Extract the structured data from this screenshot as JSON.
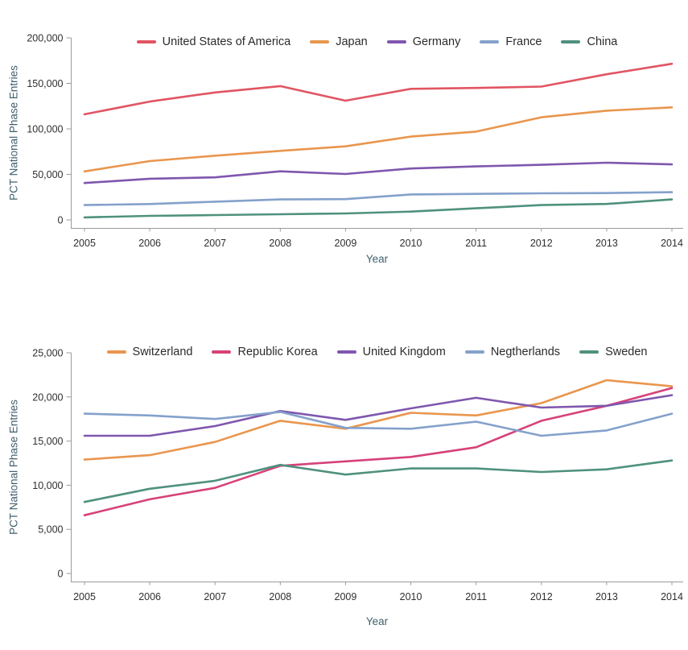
{
  "chart_data": [
    {
      "type": "line",
      "title": "",
      "xlabel": "Year",
      "ylabel": "PCT National Phase Entries",
      "x": [
        2005,
        2006,
        2007,
        2008,
        2009,
        2010,
        2011,
        2012,
        2013,
        2014
      ],
      "x_tick_labels": [
        "2005",
        "2006",
        "2007",
        "2008",
        "2009",
        "2010",
        "2011",
        "2012",
        "2013",
        "2014"
      ],
      "ylim": [
        0,
        200000
      ],
      "yticks": [
        0,
        50000,
        100000,
        150000,
        200000
      ],
      "y_tick_labels": [
        "0",
        "50,000",
        "100,000",
        "150,000",
        "200,000"
      ],
      "grid": false,
      "legend_position": "top-center",
      "series": [
        {
          "name": "United States of America",
          "color": "#e15563",
          "values": [
            116000,
            130000,
            140000,
            147000,
            131000,
            144000,
            145000,
            146500,
            160000,
            171500
          ]
        },
        {
          "name": "Japan",
          "color": "#e9964e",
          "values": [
            53300,
            64600,
            70500,
            75800,
            80800,
            91500,
            97000,
            112700,
            120000,
            123600
          ]
        },
        {
          "name": "Germany",
          "color": "#7f57ae",
          "values": [
            40500,
            45200,
            46700,
            53400,
            50400,
            56500,
            58800,
            60500,
            62800,
            61000
          ]
        },
        {
          "name": "France",
          "color": "#84a1cb",
          "values": [
            16300,
            17400,
            20000,
            22500,
            22800,
            28000,
            28600,
            29200,
            29500,
            30400
          ]
        },
        {
          "name": "China",
          "color": "#4f917e",
          "values": [
            2700,
            4400,
            5300,
            6200,
            7100,
            9100,
            12700,
            16300,
            17500,
            22500
          ]
        }
      ]
    },
    {
      "type": "line",
      "title": "",
      "xlabel": "Year",
      "ylabel": "PCT National Phase Entries",
      "x": [
        2005,
        2006,
        2007,
        2008,
        2009,
        2010,
        2011,
        2012,
        2013,
        2014
      ],
      "x_tick_labels": [
        "2005",
        "2006",
        "2007",
        "2008",
        "2009",
        "2010",
        "2011",
        "2012",
        "2013",
        "2014"
      ],
      "ylim": [
        0,
        25000
      ],
      "yticks": [
        0,
        5000,
        10000,
        15000,
        20000,
        25000
      ],
      "y_tick_labels": [
        "0",
        "5,000",
        "10,000",
        "15,000",
        "20,000",
        "25,000"
      ],
      "grid": false,
      "legend_position": "top-center",
      "series": [
        {
          "name": "Switzerland",
          "color": "#e9964e",
          "values": [
            12900,
            13400,
            14900,
            17300,
            16400,
            18200,
            17900,
            19300,
            21900,
            21200
          ]
        },
        {
          "name": "Republic Korea",
          "color": "#d64279",
          "values": [
            6600,
            8400,
            9700,
            12200,
            12700,
            13200,
            14300,
            17300,
            19000,
            21000
          ]
        },
        {
          "name": "United Kingdom",
          "color": "#7f57ae",
          "values": [
            15600,
            15600,
            16700,
            18400,
            17400,
            18700,
            19900,
            18800,
            19000,
            20200
          ]
        },
        {
          "name": "Negtherlands",
          "color": "#84a1cb",
          "values": [
            18100,
            17900,
            17500,
            18300,
            16500,
            16400,
            17200,
            15600,
            16200,
            18100
          ]
        },
        {
          "name": "Sweden",
          "color": "#4f917e",
          "values": [
            8100,
            9600,
            10500,
            12300,
            11200,
            11900,
            11900,
            11500,
            11800,
            12800
          ]
        }
      ]
    }
  ]
}
